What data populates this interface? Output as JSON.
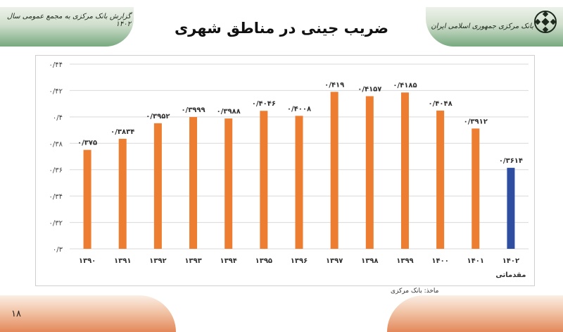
{
  "header": {
    "report_caption": "گزارش بانک مرکزی به مجمع عمومی سال ۱۴۰۲",
    "bank_name": "بانک مرکزی جمهوری اسلامی ایران",
    "title": "ضریب جینی در مناطق شهری"
  },
  "source": "ماخذ: بانک مرکزی",
  "page_number": "۱۸",
  "colors": {
    "bar": "#ed7d31",
    "highlight": "#2f4ea1",
    "grid": "#d9d9d9"
  },
  "chart_data": {
    "type": "bar",
    "categories": [
      "۱۳۹۰",
      "۱۳۹۱",
      "۱۳۹۲",
      "۱۳۹۳",
      "۱۳۹۴",
      "۱۳۹۵",
      "۱۳۹۶",
      "۱۳۹۷",
      "۱۳۹۸",
      "۱۳۹۹",
      "۱۴۰۰",
      "۱۴۰۱",
      "۱۴۰۲"
    ],
    "category_notes": [
      "",
      "",
      "",
      "",
      "",
      "",
      "",
      "",
      "",
      "",
      "",
      "",
      "مقدماتی"
    ],
    "values": [
      0.375,
      0.3834,
      0.3952,
      0.3999,
      0.3988,
      0.4046,
      0.4008,
      0.419,
      0.4157,
      0.4185,
      0.4048,
      0.3912,
      0.3614
    ],
    "value_labels": [
      "۰/۳۷۵",
      "۰/۳۸۳۴",
      "۰/۳۹۵۲",
      "۰/۳۹۹۹",
      "۰/۳۹۸۸",
      "۰/۴۰۴۶",
      "۰/۴۰۰۸",
      "۰/۴۱۹",
      "۰/۴۱۵۷",
      "۰/۴۱۸۵",
      "۰/۴۰۴۸",
      "۰/۳۹۱۲",
      "۰/۳۶۱۴"
    ],
    "highlight_index": 12,
    "ylim": [
      0.3,
      0.44
    ],
    "yticks": [
      0.3,
      0.32,
      0.34,
      0.36,
      0.38,
      0.4,
      0.42,
      0.44
    ],
    "ytick_labels": [
      "۰/۳",
      "۰/۳۲",
      "۰/۳۴",
      "۰/۳۶",
      "۰/۳۸",
      "۰/۴",
      "۰/۴۲",
      "۰/۴۴"
    ],
    "grid": true,
    "legend": "none"
  }
}
